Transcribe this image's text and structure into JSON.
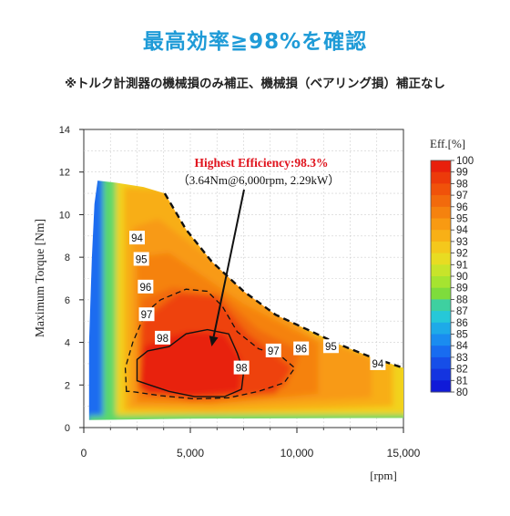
{
  "header": {
    "title": "最高効率≧98%を確認",
    "subtitle": "※トルク計測器の機械損のみ補正、機械損（ベアリング損）補正なし"
  },
  "chart_data": {
    "type": "heatmap",
    "title": "",
    "xlabel": "[rpm]",
    "ylabel": "Maximum Torque  [Nm]",
    "xlim": [
      0,
      15000
    ],
    "ylim": [
      0,
      14
    ],
    "x_ticks": [
      "0",
      "5,000",
      "10,000",
      "15,000"
    ],
    "y_ticks": [
      "0",
      "2",
      "4",
      "6",
      "8",
      "10",
      "12",
      "14"
    ],
    "grid": true,
    "colorbar": {
      "title": "Eff.[%]",
      "labels": [
        "100",
        "99",
        "98",
        "97",
        "96",
        "95",
        "94",
        "93",
        "92",
        "91",
        "90",
        "89",
        "88",
        "87",
        "86",
        "85",
        "84",
        "83",
        "82",
        "81",
        "80"
      ],
      "colors": [
        "#e8200c",
        "#ec3a0a",
        "#f0520a",
        "#f26a0c",
        "#f5820e",
        "#f89a12",
        "#f8b016",
        "#f4c81c",
        "#e8dc22",
        "#c8e42a",
        "#a6e430",
        "#7edc3c",
        "#3ed0a0",
        "#26c8d8",
        "#1eaae8",
        "#1a8cf0",
        "#186cf0",
        "#164ee8",
        "#1434e0",
        "#101ad8",
        "#0a0ad0"
      ]
    },
    "contour_labels": [
      {
        "text": "94",
        "x": 2500,
        "y": 8.9
      },
      {
        "text": "95",
        "x": 2700,
        "y": 7.9
      },
      {
        "text": "96",
        "x": 2900,
        "y": 6.6
      },
      {
        "text": "97",
        "x": 2950,
        "y": 5.3
      },
      {
        "text": "98",
        "x": 3700,
        "y": 4.2
      },
      {
        "text": "98",
        "x": 7400,
        "y": 2.8
      },
      {
        "text": "97",
        "x": 8900,
        "y": 3.6
      },
      {
        "text": "96",
        "x": 10200,
        "y": 3.7
      },
      {
        "text": "95",
        "x": 11600,
        "y": 3.8
      },
      {
        "text": "94",
        "x": 13800,
        "y": 3.0
      }
    ],
    "annotation": {
      "line1": "Highest Efficiency:98.3%",
      "line2": "（3.64Nm@6,000rpm, 2.29kW）",
      "point": {
        "x": 6000,
        "y": 3.64
      }
    }
  }
}
